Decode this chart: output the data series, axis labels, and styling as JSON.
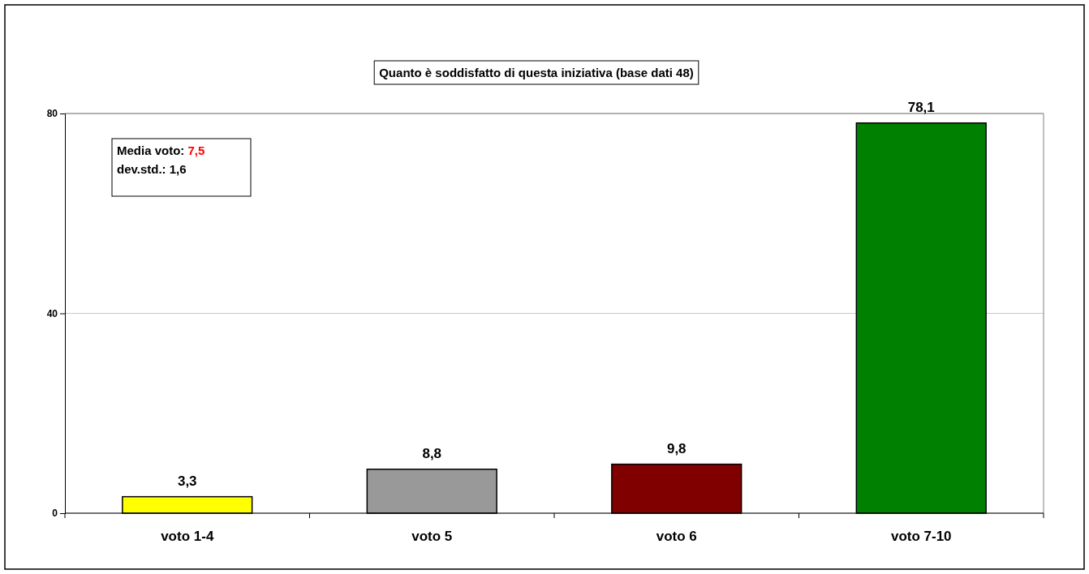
{
  "chart_data": {
    "type": "bar",
    "title": "Quanto è soddisfatto di questa iniziativa (base dati 48)",
    "categories": [
      "voto 1-4",
      "voto 5",
      "voto 6",
      "voto 7-10"
    ],
    "values": [
      3.3,
      8.8,
      9.8,
      78.1
    ],
    "colors": [
      "#ffff00",
      "#999999",
      "#800000",
      "#008000"
    ],
    "value_labels": [
      "3,3",
      "8,8",
      "9,8",
      "78,1"
    ],
    "ylim": [
      0,
      80
    ],
    "yticks": [
      0,
      40,
      80
    ],
    "grid": "y",
    "annotations": [
      "Media voto: 7,5",
      "dev.std.: 1,6"
    ]
  }
}
